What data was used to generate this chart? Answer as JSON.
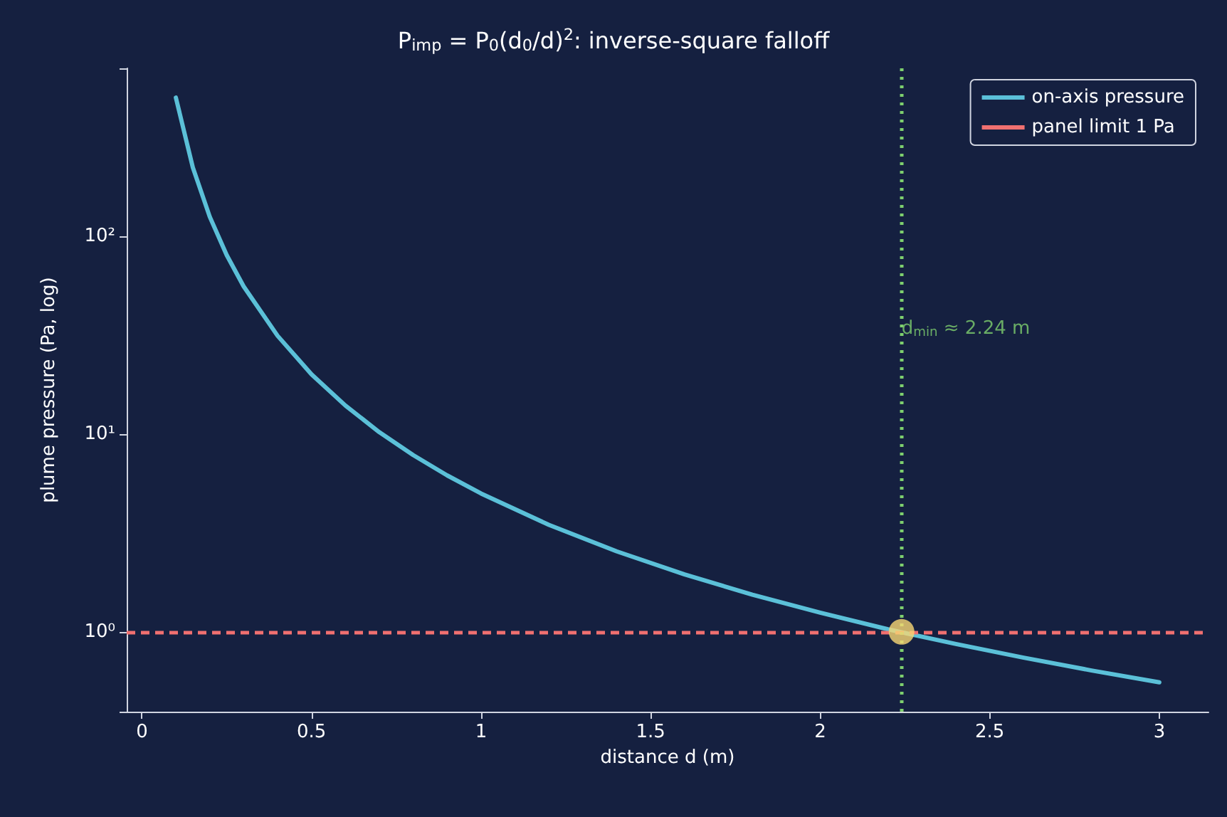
{
  "chart_data": {
    "type": "line",
    "title": "P$_{imp}$ = P$_{0}$(d$_{0}$/d)$^{2}$: inverse-square falloff",
    "xlabel": "distance d (m)",
    "ylabel": "plume pressure (Pa, log)",
    "series": [
      {
        "name": "on-axis pressure",
        "color": "#5bc0d8",
        "marker": "none",
        "x": [
          0.1,
          0.15,
          0.2,
          0.25,
          0.3,
          0.4,
          0.5,
          0.6,
          0.7,
          0.8,
          0.9,
          1.0,
          1.2,
          1.4,
          1.6,
          1.8,
          2.0,
          2.2,
          2.4,
          2.6,
          2.8,
          3.0
        ],
        "values": [
          500,
          222,
          125,
          80,
          55.6,
          31.3,
          20,
          13.9,
          10.2,
          7.81,
          6.17,
          5,
          3.47,
          2.55,
          1.95,
          1.54,
          1.25,
          1.03,
          0.868,
          0.74,
          0.638,
          0.556
        ]
      },
      {
        "type": "scatter",
        "color": "#f7d774",
        "marker": "circle",
        "x": [
          2.24
        ],
        "values": [
          1
        ]
      }
    ],
    "ref_lines": [
      {
        "axis": "y",
        "value": 1,
        "label": "panel limit 1 Pa",
        "color": "#f07070",
        "line_style": "dashed"
      },
      {
        "axis": "x",
        "value": 2.24,
        "color": "#7ecf6e",
        "line_style": "dotted"
      }
    ],
    "annotations": [
      {
        "text": "d$_{min}$ ≈ 2.24 m",
        "x": 2.24,
        "y": 34
      }
    ],
    "xlim": [
      -0.045,
      3.145
    ],
    "xticks": [
      0,
      0.5,
      1,
      1.5,
      2,
      2.5,
      3
    ],
    "ylim": [
      0.395,
      703
    ],
    "yticks": [
      {
        "value": 1,
        "label": "10⁰"
      },
      {
        "value": 10,
        "label": "10¹"
      },
      {
        "value": 100,
        "label": "10²"
      }
    ],
    "log": "y",
    "grid": false,
    "legend": "top right",
    "line_style": "solid"
  }
}
